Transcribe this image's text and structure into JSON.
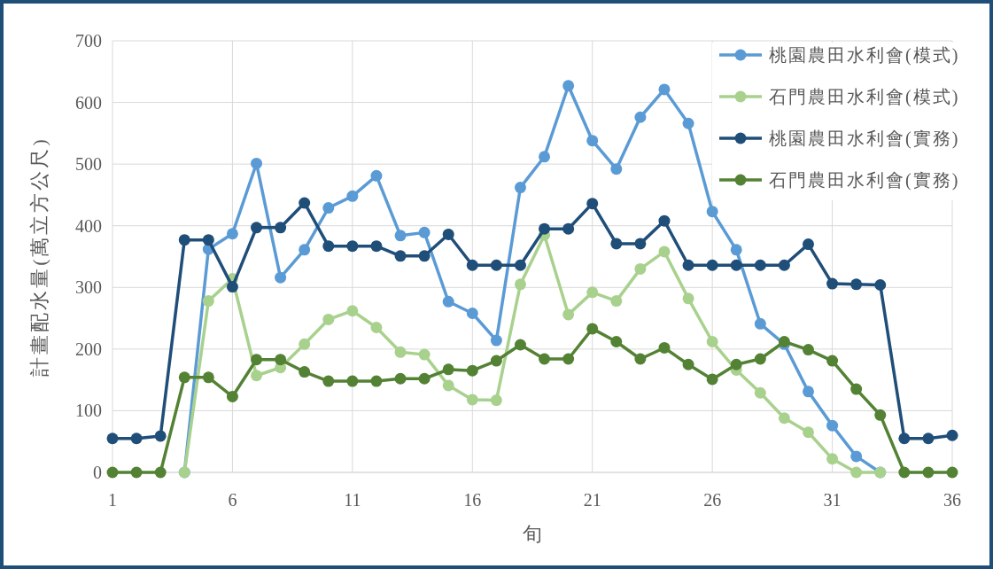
{
  "chart_data": {
    "type": "line",
    "xlabel": "旬",
    "ylabel": "計畫配水量(萬立方公尺)",
    "x": [
      1,
      2,
      3,
      4,
      5,
      6,
      7,
      8,
      9,
      10,
      11,
      12,
      13,
      14,
      15,
      16,
      17,
      18,
      19,
      20,
      21,
      22,
      23,
      24,
      25,
      26,
      27,
      28,
      29,
      30,
      31,
      32,
      33,
      34,
      35,
      36
    ],
    "xlim": [
      1,
      36
    ],
    "xticks": [
      1,
      6,
      11,
      16,
      21,
      26,
      31,
      36
    ],
    "ylim": [
      0,
      700
    ],
    "yticks": [
      0,
      100,
      200,
      300,
      400,
      500,
      600,
      700
    ],
    "grid": true,
    "legend": "top right",
    "marker": "circle",
    "series": [
      {
        "name": "桃園農田水利會(模式)",
        "color": "#5b9bd5",
        "values": [
          null,
          null,
          null,
          0,
          362,
          387,
          501,
          316,
          361,
          429,
          448,
          481,
          384,
          389,
          277,
          258,
          214,
          462,
          512,
          627,
          538,
          492,
          576,
          621,
          566,
          423,
          361,
          241,
          208,
          131,
          76,
          26,
          0,
          null,
          null,
          null
        ]
      },
      {
        "name": "石門農田水利會(模式)",
        "color": "#a9d18e",
        "values": [
          null,
          null,
          null,
          0,
          278,
          314,
          157,
          170,
          208,
          248,
          262,
          235,
          195,
          191,
          141,
          118,
          117,
          305,
          385,
          256,
          292,
          278,
          330,
          358,
          282,
          212,
          166,
          129,
          88,
          65,
          22,
          0,
          0,
          null,
          null,
          null
        ]
      },
      {
        "name": "桃園農田水利會(實務)",
        "color": "#1f4e79",
        "values": [
          55,
          55,
          59,
          377,
          377,
          301,
          397,
          397,
          437,
          367,
          367,
          367,
          351,
          351,
          386,
          336,
          336,
          336,
          395,
          395,
          436,
          371,
          371,
          408,
          336,
          336,
          336,
          336,
          336,
          370,
          306,
          305,
          304,
          55,
          55,
          60
        ]
      },
      {
        "name": "石門農田水利會(實務)",
        "color": "#548235",
        "values": [
          0,
          0,
          0,
          154,
          154,
          123,
          183,
          183,
          163,
          148,
          148,
          148,
          152,
          152,
          167,
          165,
          181,
          207,
          184,
          184,
          233,
          212,
          184,
          202,
          175,
          151,
          175,
          184,
          212,
          199,
          181,
          135,
          93,
          0,
          0,
          0
        ]
      }
    ]
  }
}
